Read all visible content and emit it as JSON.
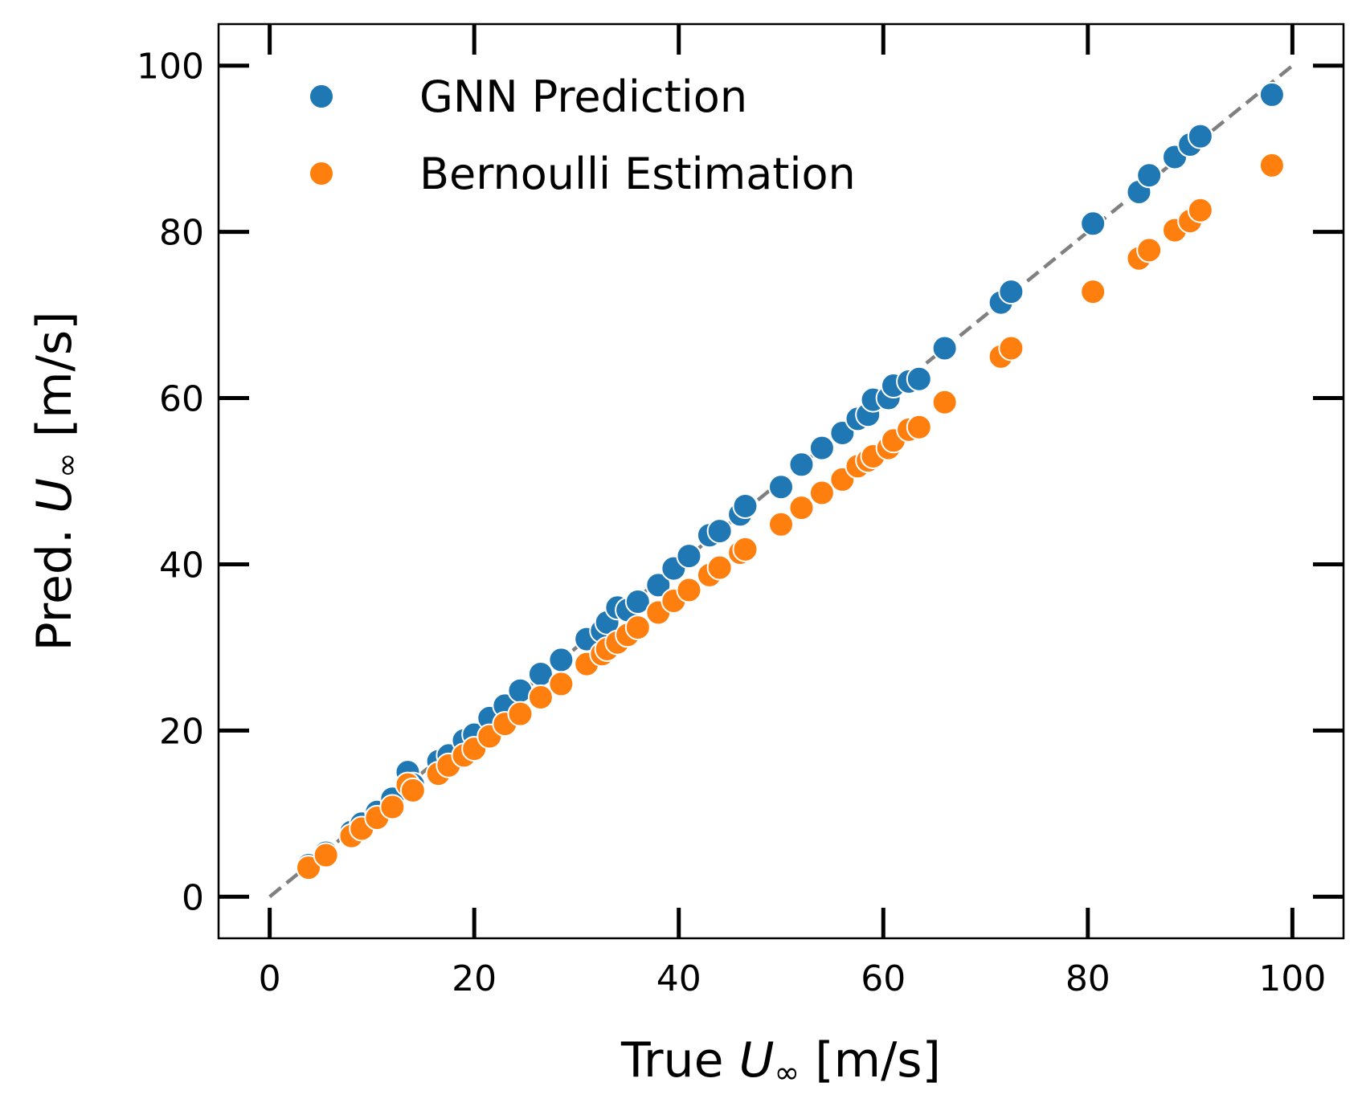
{
  "chart_data": {
    "type": "scatter",
    "xlabel": "True U∞ [m/s]",
    "ylabel": "Pred. U∞ [m/s]",
    "xlabel_parts": {
      "pre": "True ",
      "var": "U",
      "sub": "∞",
      "post": " [m/s]"
    },
    "ylabel_parts": {
      "pre": "Pred. ",
      "var": "U",
      "sub": "∞",
      "post": " [m/s]"
    },
    "xlim": [
      -5,
      105
    ],
    "ylim": [
      -5,
      105
    ],
    "x_ticks": [
      0,
      20,
      40,
      60,
      80,
      100
    ],
    "y_ticks": [
      0,
      20,
      40,
      60,
      80,
      100
    ],
    "grid": false,
    "legend_position": "top-left",
    "reference_line": {
      "style": "dashed",
      "color": "#808080",
      "x": [
        0,
        100
      ],
      "y": [
        0,
        100
      ]
    },
    "series": [
      {
        "name": "GNN Prediction",
        "color": "#1f77b4",
        "points": [
          [
            3.8,
            3.8
          ],
          [
            5.5,
            5.3
          ],
          [
            8.0,
            7.8
          ],
          [
            9.0,
            8.8
          ],
          [
            10.5,
            10.2
          ],
          [
            12.0,
            11.8
          ],
          [
            13.5,
            15.0
          ],
          [
            14.0,
            13.5
          ],
          [
            16.5,
            16.3
          ],
          [
            17.5,
            17.0
          ],
          [
            19.0,
            18.8
          ],
          [
            20.0,
            19.5
          ],
          [
            21.5,
            21.5
          ],
          [
            23.0,
            23.0
          ],
          [
            24.5,
            24.8
          ],
          [
            26.5,
            26.8
          ],
          [
            28.5,
            28.5
          ],
          [
            31.0,
            31.0
          ],
          [
            32.5,
            32.0
          ],
          [
            33.0,
            33.0
          ],
          [
            34.0,
            34.8
          ],
          [
            35.0,
            34.5
          ],
          [
            36.0,
            35.5
          ],
          [
            38.0,
            37.5
          ],
          [
            39.5,
            39.5
          ],
          [
            41.0,
            41.0
          ],
          [
            43.0,
            43.5
          ],
          [
            44.0,
            44.0
          ],
          [
            46.0,
            46.0
          ],
          [
            46.5,
            47.0
          ],
          [
            50.0,
            49.3
          ],
          [
            52.0,
            52.0
          ],
          [
            54.0,
            54.0
          ],
          [
            56.0,
            55.8
          ],
          [
            57.5,
            57.5
          ],
          [
            58.5,
            58.0
          ],
          [
            59.0,
            59.8
          ],
          [
            60.5,
            60.0
          ],
          [
            61.0,
            61.5
          ],
          [
            62.5,
            62.0
          ],
          [
            63.5,
            62.3
          ],
          [
            66.0,
            66.0
          ],
          [
            71.5,
            71.5
          ],
          [
            72.5,
            72.8
          ],
          [
            80.5,
            81.0
          ],
          [
            85.0,
            84.8
          ],
          [
            86.0,
            86.8
          ],
          [
            88.5,
            89.0
          ],
          [
            90.0,
            90.5
          ],
          [
            91.0,
            91.5
          ],
          [
            98.0,
            96.5
          ]
        ]
      },
      {
        "name": "Bernoulli Estimation",
        "color": "#ff7f0e",
        "points": [
          [
            3.8,
            3.5
          ],
          [
            5.5,
            5.0
          ],
          [
            8.0,
            7.3
          ],
          [
            9.0,
            8.2
          ],
          [
            10.5,
            9.5
          ],
          [
            12.0,
            10.8
          ],
          [
            13.5,
            13.5
          ],
          [
            14.0,
            12.8
          ],
          [
            16.5,
            14.8
          ],
          [
            17.5,
            15.8
          ],
          [
            19.0,
            17.0
          ],
          [
            20.0,
            17.8
          ],
          [
            21.5,
            19.3
          ],
          [
            23.0,
            20.8
          ],
          [
            24.5,
            22.0
          ],
          [
            26.5,
            24.0
          ],
          [
            28.5,
            25.6
          ],
          [
            31.0,
            28.0
          ],
          [
            32.5,
            29.2
          ],
          [
            33.0,
            29.8
          ],
          [
            34.0,
            30.6
          ],
          [
            35.0,
            31.5
          ],
          [
            36.0,
            32.4
          ],
          [
            38.0,
            34.2
          ],
          [
            39.5,
            35.6
          ],
          [
            41.0,
            36.9
          ],
          [
            43.0,
            38.7
          ],
          [
            44.0,
            39.6
          ],
          [
            46.0,
            41.4
          ],
          [
            46.5,
            41.8
          ],
          [
            50.0,
            44.8
          ],
          [
            52.0,
            46.8
          ],
          [
            54.0,
            48.6
          ],
          [
            56.0,
            50.2
          ],
          [
            57.5,
            51.8
          ],
          [
            58.5,
            52.5
          ],
          [
            59.0,
            53.0
          ],
          [
            60.5,
            54.0
          ],
          [
            61.0,
            54.9
          ],
          [
            62.5,
            56.2
          ],
          [
            63.5,
            56.5
          ],
          [
            66.0,
            59.5
          ],
          [
            71.5,
            65.0
          ],
          [
            72.5,
            66.0
          ],
          [
            80.5,
            72.8
          ],
          [
            85.0,
            76.8
          ],
          [
            86.0,
            77.8
          ],
          [
            88.5,
            80.2
          ],
          [
            90.0,
            81.3
          ],
          [
            91.0,
            82.6
          ],
          [
            98.0,
            88.0
          ]
        ]
      }
    ]
  }
}
